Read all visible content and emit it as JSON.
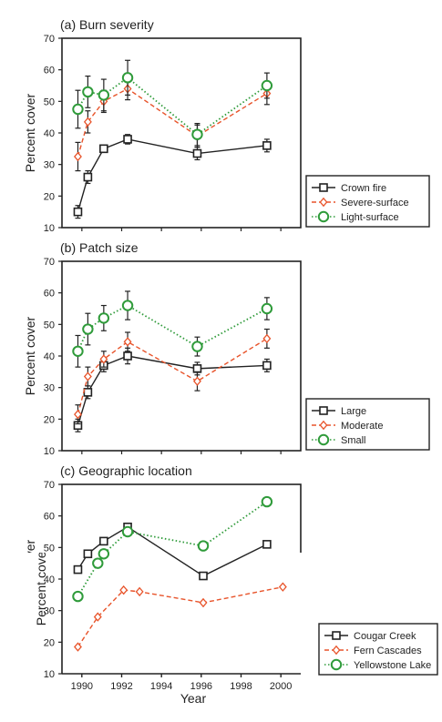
{
  "x_axis": {
    "label": "Year",
    "ticks": [
      "1990",
      "1992",
      "1994",
      "1996",
      "1998",
      "2000"
    ]
  },
  "chart_data": [
    {
      "type": "line",
      "title": "(a) Burn severity",
      "ylabel": "Percent cover",
      "xlim": [
        1989,
        2001
      ],
      "ylim": [
        10,
        70
      ],
      "yticks": [
        10,
        20,
        30,
        40,
        50,
        60,
        70
      ],
      "legend": "bottom-right",
      "series": [
        {
          "name": "Crown fire",
          "color": "#222222",
          "dash": "solid",
          "marker": "square",
          "x": [
            1989.8,
            1990.3,
            1991.1,
            1992.3,
            1995.8,
            1999.3
          ],
          "y": [
            15,
            26,
            35,
            38,
            33.5,
            36
          ],
          "err": [
            2,
            2,
            1,
            1.5,
            2,
            2
          ]
        },
        {
          "name": "Severe-surface",
          "color": "#e8542b",
          "dash": "dashed",
          "marker": "diamond",
          "x": [
            1989.8,
            1990.3,
            1991.1,
            1992.3,
            1995.8,
            1999.3
          ],
          "y": [
            32.5,
            43.5,
            50,
            54,
            39,
            52.5
          ],
          "err": [
            4.5,
            3.5,
            3.5,
            3.5,
            3.5,
            3.5
          ]
        },
        {
          "name": "Light-surface",
          "color": "#2f9b3a",
          "dash": "dotted",
          "marker": "circle",
          "x": [
            1989.8,
            1990.3,
            1991.1,
            1992.3,
            1995.8,
            1999.3
          ],
          "y": [
            47.5,
            53,
            52,
            57.5,
            39.5,
            55
          ],
          "err": [
            6,
            5,
            5,
            5.5,
            3.5,
            4
          ]
        }
      ]
    },
    {
      "type": "line",
      "title": "(b) Patch size",
      "ylabel": "Percent cover",
      "xlim": [
        1989,
        2001
      ],
      "ylim": [
        10,
        70
      ],
      "yticks": [
        10,
        20,
        30,
        40,
        50,
        60,
        70
      ],
      "legend": "bottom-right",
      "series": [
        {
          "name": "Large",
          "color": "#222222",
          "dash": "solid",
          "marker": "square",
          "x": [
            1989.8,
            1990.3,
            1991.1,
            1992.3,
            1995.8,
            1999.3
          ],
          "y": [
            18,
            28.5,
            37,
            40,
            36,
            37
          ],
          "err": [
            2,
            2,
            2,
            2.5,
            2,
            2
          ]
        },
        {
          "name": "Moderate",
          "color": "#e8542b",
          "dash": "dashed",
          "marker": "diamond",
          "x": [
            1989.8,
            1990.3,
            1991.1,
            1992.3,
            1995.8,
            1999.3
          ],
          "y": [
            21.5,
            33.5,
            39,
            44.5,
            32,
            45.5
          ],
          "err": [
            3,
            3,
            2.5,
            3,
            3,
            3
          ]
        },
        {
          "name": "Small",
          "color": "#2f9b3a",
          "dash": "dotted",
          "marker": "circle",
          "x": [
            1989.8,
            1990.3,
            1991.1,
            1992.3,
            1995.8,
            1999.3
          ],
          "y": [
            41.5,
            48.5,
            52,
            56,
            43,
            55
          ],
          "err": [
            5,
            5,
            4,
            4.5,
            3,
            3.5
          ]
        }
      ]
    },
    {
      "type": "line",
      "title": "(c) Geographic location",
      "ylabel": "Percent cover",
      "xlim": [
        1989,
        2001
      ],
      "ylim": [
        10,
        70
      ],
      "yticks": [
        10,
        20,
        30,
        40,
        50,
        60,
        70
      ],
      "legend": "bottom-right",
      "series": [
        {
          "name": "Cougar Creek",
          "color": "#222222",
          "dash": "solid",
          "marker": "square",
          "x": [
            1989.8,
            1990.3,
            1991.1,
            1992.3,
            1996.1,
            1999.3
          ],
          "y": [
            43,
            48,
            52,
            56.5,
            41,
            51
          ],
          "err": [
            0,
            0,
            0,
            0,
            0,
            0
          ]
        },
        {
          "name": "Fern Cascades",
          "color": "#e8542b",
          "dash": "dashed",
          "marker": "diamond",
          "x": [
            1989.8,
            1990.8,
            1992.1,
            1992.9,
            1996.1,
            2000.1
          ],
          "y": [
            18.5,
            28,
            36.5,
            36,
            32.5,
            37.5
          ],
          "err": [
            0,
            0,
            0,
            0,
            0,
            0
          ]
        },
        {
          "name": "Yellowstone Lake",
          "color": "#2f9b3a",
          "dash": "dotted",
          "marker": "circle",
          "x": [
            1989.8,
            1990.8,
            1991.1,
            1992.3,
            1996.1,
            1999.3
          ],
          "y": [
            34.5,
            45,
            48,
            55,
            50.5,
            64.5
          ],
          "err": [
            0,
            0,
            0,
            0,
            0,
            0
          ]
        }
      ]
    }
  ]
}
